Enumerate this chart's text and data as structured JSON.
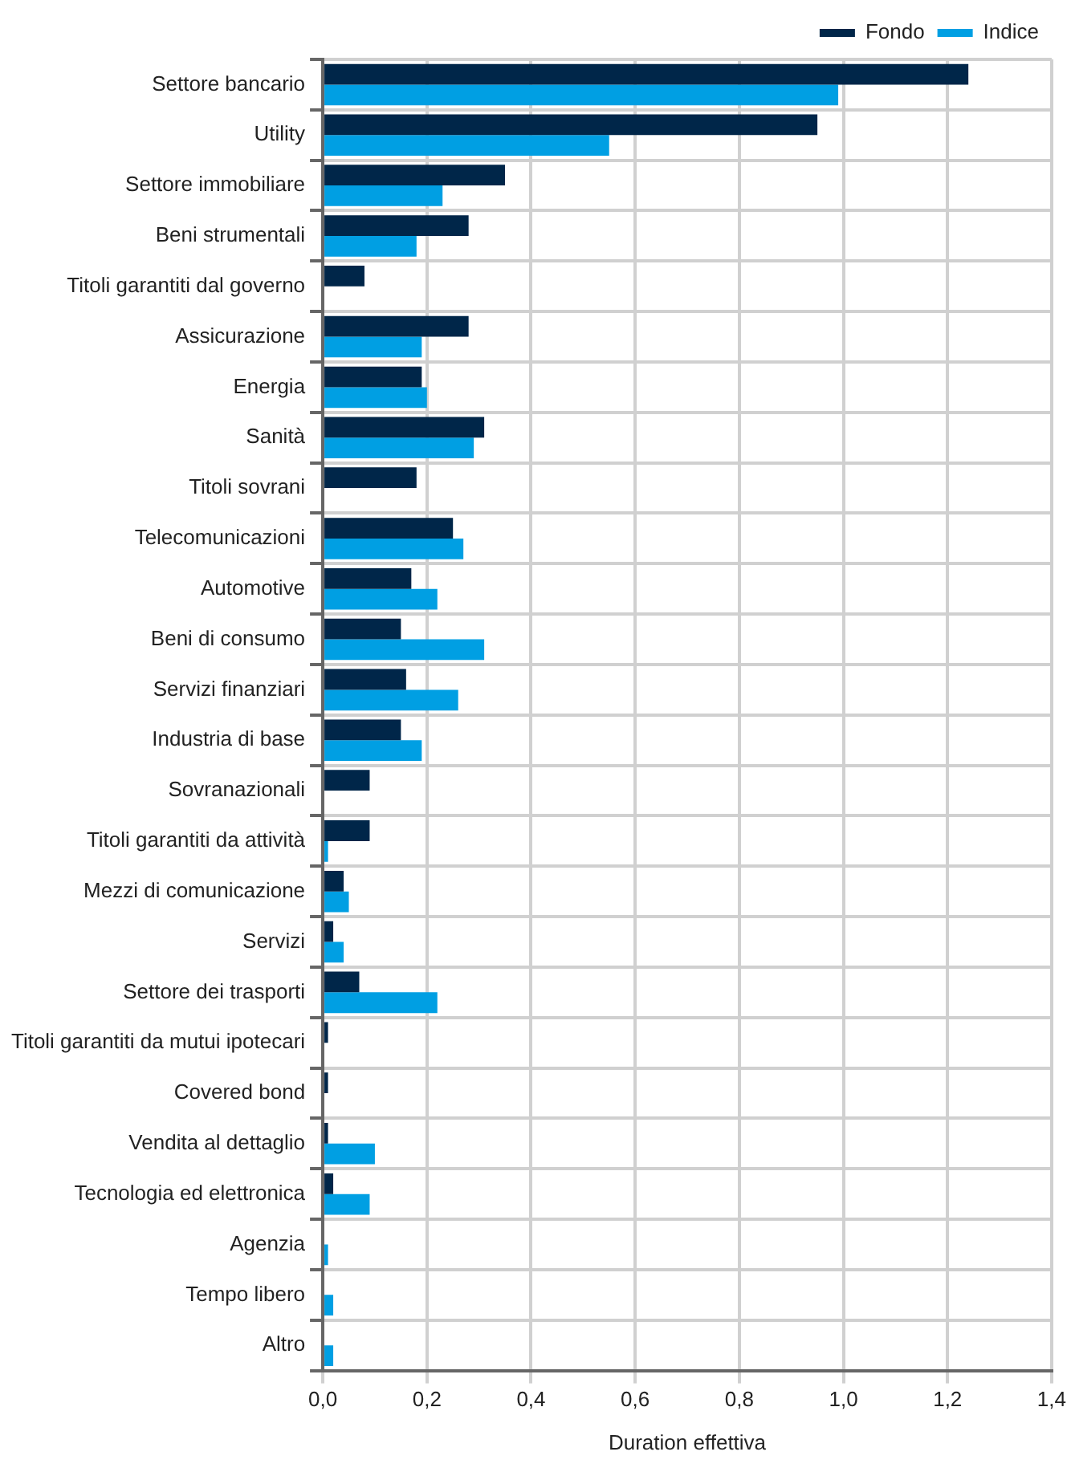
{
  "chart_data": {
    "type": "bar",
    "orientation": "horizontal",
    "xlabel": "Duration effettiva",
    "categories": [
      "Settore bancario",
      "Utility",
      "Settore immobiliare",
      "Beni strumentali",
      "Titoli garantiti dal governo",
      "Assicurazione",
      "Energia",
      "Sanità",
      "Titoli sovrani",
      "Telecomunicazioni",
      "Automotive",
      "Beni di consumo",
      "Servizi finanziari",
      "Industria di base",
      "Sovranazionali",
      "Titoli garantiti da attività",
      "Mezzi di comunicazione",
      "Servizi",
      "Settore dei trasporti",
      "Titoli garantiti da mutui ipotecari",
      "Covered bond",
      "Vendita al dettaglio",
      "Tecnologia ed elettronica",
      "Agenzia",
      "Tempo libero",
      "Altro"
    ],
    "series": [
      {
        "name": "Fondo",
        "color": "#002649",
        "values": [
          1.24,
          0.95,
          0.35,
          0.28,
          0.08,
          0.28,
          0.19,
          0.31,
          0.18,
          0.25,
          0.17,
          0.15,
          0.16,
          0.15,
          0.09,
          0.09,
          0.04,
          0.02,
          0.07,
          0.01,
          0.01,
          0.01,
          0.02,
          0,
          0,
          0
        ]
      },
      {
        "name": "Indice",
        "color": "#009fe3",
        "values": [
          0.99,
          0.55,
          0.23,
          0.18,
          0,
          0.19,
          0.2,
          0.29,
          0,
          0.27,
          0.22,
          0.31,
          0.26,
          0.19,
          0,
          0.01,
          0.05,
          0.04,
          0.22,
          0,
          0,
          0.1,
          0.09,
          0.01,
          0.02,
          0.02
        ]
      }
    ],
    "xlim": [
      0,
      1.4
    ],
    "xticks": [
      {
        "value": 0,
        "label": "0,0"
      },
      {
        "value": 0.2,
        "label": "0,2"
      },
      {
        "value": 0.4,
        "label": "0,4"
      },
      {
        "value": 0.6,
        "label": "0,6"
      },
      {
        "value": 0.8,
        "label": "0,8"
      },
      {
        "value": 1,
        "label": "1,0"
      },
      {
        "value": 1.2,
        "label": "1,2"
      },
      {
        "value": 1.4,
        "label": "1,4"
      }
    ],
    "grid": true,
    "legend": "top right"
  }
}
